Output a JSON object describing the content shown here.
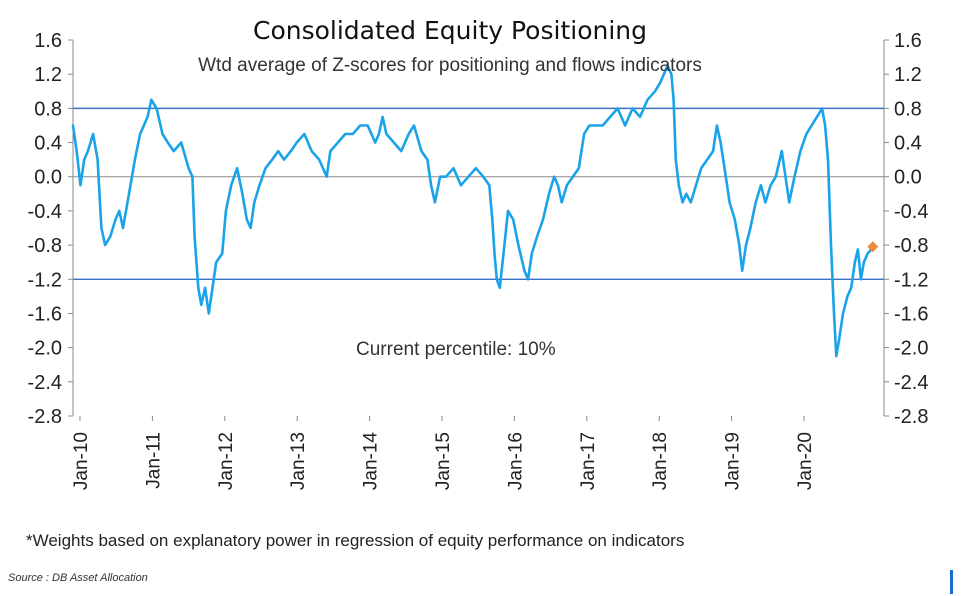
{
  "chart_data": {
    "type": "line",
    "title": "Consolidated Equity Positioning",
    "subtitle": "Wtd average of Z-scores for positioning and flows indicators",
    "annotation": "Current percentile: 10%",
    "footnote": "*Weights based on explanatory power in regression of equity performance on indicators",
    "source": "Source : DB Asset Allocation",
    "xlabel": "",
    "ylabel": "",
    "ylim": [
      -2.8,
      1.6
    ],
    "y_ticks": [
      "1.6",
      "1.2",
      "0.8",
      "0.4",
      "0.0",
      "-0.4",
      "-0.8",
      "-1.2",
      "-1.6",
      "-2.0",
      "-2.4",
      "-2.8"
    ],
    "x_tick_labels": [
      "Jan-10",
      "Jan-11",
      "Jan-12",
      "Jan-13",
      "Jan-14",
      "Jan-15",
      "Jan-16",
      "Jan-17",
      "Jan-18",
      "Jan-19",
      "Jan-20"
    ],
    "reference_lines": [
      0.8,
      -1.2
    ],
    "series": [
      {
        "name": "Consolidated Equity Positioning",
        "color": "#1aa3e8",
        "points": [
          [
            2010.0,
            0.6
          ],
          [
            2010.05,
            0.3
          ],
          [
            2010.1,
            -0.1
          ],
          [
            2010.15,
            0.2
          ],
          [
            2010.2,
            0.3
          ],
          [
            2010.27,
            0.5
          ],
          [
            2010.33,
            0.2
          ],
          [
            2010.38,
            -0.6
          ],
          [
            2010.43,
            -0.8
          ],
          [
            2010.5,
            -0.7
          ],
          [
            2010.57,
            -0.5
          ],
          [
            2010.62,
            -0.4
          ],
          [
            2010.67,
            -0.6
          ],
          [
            2010.75,
            -0.2
          ],
          [
            2010.83,
            0.2
          ],
          [
            2010.9,
            0.5
          ],
          [
            2011.0,
            0.7
          ],
          [
            2011.05,
            0.9
          ],
          [
            2011.12,
            0.8
          ],
          [
            2011.2,
            0.5
          ],
          [
            2011.27,
            0.4
          ],
          [
            2011.35,
            0.3
          ],
          [
            2011.45,
            0.4
          ],
          [
            2011.55,
            0.1
          ],
          [
            2011.6,
            0.0
          ],
          [
            2011.63,
            -0.7
          ],
          [
            2011.68,
            -1.3
          ],
          [
            2011.72,
            -1.5
          ],
          [
            2011.77,
            -1.3
          ],
          [
            2011.82,
            -1.6
          ],
          [
            2011.87,
            -1.3
          ],
          [
            2011.92,
            -1.0
          ],
          [
            2012.0,
            -0.9
          ],
          [
            2012.05,
            -0.4
          ],
          [
            2012.12,
            -0.1
          ],
          [
            2012.2,
            0.1
          ],
          [
            2012.27,
            -0.2
          ],
          [
            2012.33,
            -0.5
          ],
          [
            2012.38,
            -0.6
          ],
          [
            2012.43,
            -0.3
          ],
          [
            2012.5,
            -0.1
          ],
          [
            2012.58,
            0.1
          ],
          [
            2012.67,
            0.2
          ],
          [
            2012.75,
            0.3
          ],
          [
            2012.83,
            0.2
          ],
          [
            2012.92,
            0.3
          ],
          [
            2013.0,
            0.4
          ],
          [
            2013.1,
            0.5
          ],
          [
            2013.2,
            0.3
          ],
          [
            2013.3,
            0.2
          ],
          [
            2013.4,
            0.0
          ],
          [
            2013.45,
            0.3
          ],
          [
            2013.55,
            0.4
          ],
          [
            2013.65,
            0.5
          ],
          [
            2013.75,
            0.5
          ],
          [
            2013.85,
            0.6
          ],
          [
            2013.95,
            0.6
          ],
          [
            2014.05,
            0.4
          ],
          [
            2014.1,
            0.5
          ],
          [
            2014.15,
            0.7
          ],
          [
            2014.2,
            0.5
          ],
          [
            2014.3,
            0.4
          ],
          [
            2014.4,
            0.3
          ],
          [
            2014.5,
            0.5
          ],
          [
            2014.57,
            0.6
          ],
          [
            2014.67,
            0.3
          ],
          [
            2014.75,
            0.2
          ],
          [
            2014.8,
            -0.1
          ],
          [
            2014.85,
            -0.3
          ],
          [
            2014.92,
            0.0
          ],
          [
            2015.0,
            0.0
          ],
          [
            2015.1,
            0.1
          ],
          [
            2015.2,
            -0.1
          ],
          [
            2015.3,
            0.0
          ],
          [
            2015.4,
            0.1
          ],
          [
            2015.5,
            0.0
          ],
          [
            2015.58,
            -0.1
          ],
          [
            2015.62,
            -0.5
          ],
          [
            2015.65,
            -0.9
          ],
          [
            2015.68,
            -1.2
          ],
          [
            2015.72,
            -1.3
          ],
          [
            2015.77,
            -0.9
          ],
          [
            2015.83,
            -0.4
          ],
          [
            2015.9,
            -0.5
          ],
          [
            2015.97,
            -0.8
          ],
          [
            2016.05,
            -1.1
          ],
          [
            2016.1,
            -1.2
          ],
          [
            2016.15,
            -0.9
          ],
          [
            2016.22,
            -0.7
          ],
          [
            2016.3,
            -0.5
          ],
          [
            2016.38,
            -0.2
          ],
          [
            2016.45,
            0.0
          ],
          [
            2016.5,
            -0.1
          ],
          [
            2016.55,
            -0.3
          ],
          [
            2016.62,
            -0.1
          ],
          [
            2016.7,
            0.0
          ],
          [
            2016.78,
            0.1
          ],
          [
            2016.85,
            0.5
          ],
          [
            2016.92,
            0.6
          ],
          [
            2017.0,
            0.6
          ],
          [
            2017.1,
            0.6
          ],
          [
            2017.2,
            0.7
          ],
          [
            2017.3,
            0.8
          ],
          [
            2017.4,
            0.6
          ],
          [
            2017.5,
            0.8
          ],
          [
            2017.6,
            0.7
          ],
          [
            2017.7,
            0.9
          ],
          [
            2017.8,
            1.0
          ],
          [
            2017.87,
            1.1
          ],
          [
            2017.92,
            1.2
          ],
          [
            2017.97,
            1.3
          ],
          [
            2018.02,
            1.2
          ],
          [
            2018.05,
            0.9
          ],
          [
            2018.08,
            0.2
          ],
          [
            2018.12,
            -0.1
          ],
          [
            2018.17,
            -0.3
          ],
          [
            2018.22,
            -0.2
          ],
          [
            2018.28,
            -0.3
          ],
          [
            2018.35,
            -0.1
          ],
          [
            2018.42,
            0.1
          ],
          [
            2018.5,
            0.2
          ],
          [
            2018.58,
            0.3
          ],
          [
            2018.63,
            0.6
          ],
          [
            2018.68,
            0.4
          ],
          [
            2018.75,
            0.0
          ],
          [
            2018.8,
            -0.3
          ],
          [
            2018.87,
            -0.5
          ],
          [
            2018.93,
            -0.8
          ],
          [
            2018.97,
            -1.1
          ],
          [
            2019.02,
            -0.8
          ],
          [
            2019.08,
            -0.6
          ],
          [
            2019.15,
            -0.3
          ],
          [
            2019.22,
            -0.1
          ],
          [
            2019.28,
            -0.3
          ],
          [
            2019.35,
            -0.1
          ],
          [
            2019.42,
            0.0
          ],
          [
            2019.5,
            0.3
          ],
          [
            2019.55,
            0.0
          ],
          [
            2019.6,
            -0.3
          ],
          [
            2019.67,
            0.0
          ],
          [
            2019.75,
            0.3
          ],
          [
            2019.83,
            0.5
          ],
          [
            2019.9,
            0.6
          ],
          [
            2019.97,
            0.7
          ],
          [
            2020.04,
            0.8
          ],
          [
            2020.08,
            0.6
          ],
          [
            2020.12,
            0.2
          ],
          [
            2020.16,
            -0.8
          ],
          [
            2020.2,
            -1.6
          ],
          [
            2020.23,
            -2.1
          ],
          [
            2020.27,
            -1.9
          ],
          [
            2020.32,
            -1.6
          ],
          [
            2020.38,
            -1.4
          ],
          [
            2020.43,
            -1.3
          ],
          [
            2020.48,
            -1.0
          ],
          [
            2020.52,
            -0.85
          ],
          [
            2020.56,
            -1.2
          ],
          [
            2020.6,
            -1.0
          ],
          [
            2020.65,
            -0.9
          ],
          [
            2020.7,
            -0.85
          ]
        ]
      }
    ],
    "current_point": {
      "x": 2020.72,
      "y": -0.82,
      "color": "#f08a3c"
    }
  }
}
